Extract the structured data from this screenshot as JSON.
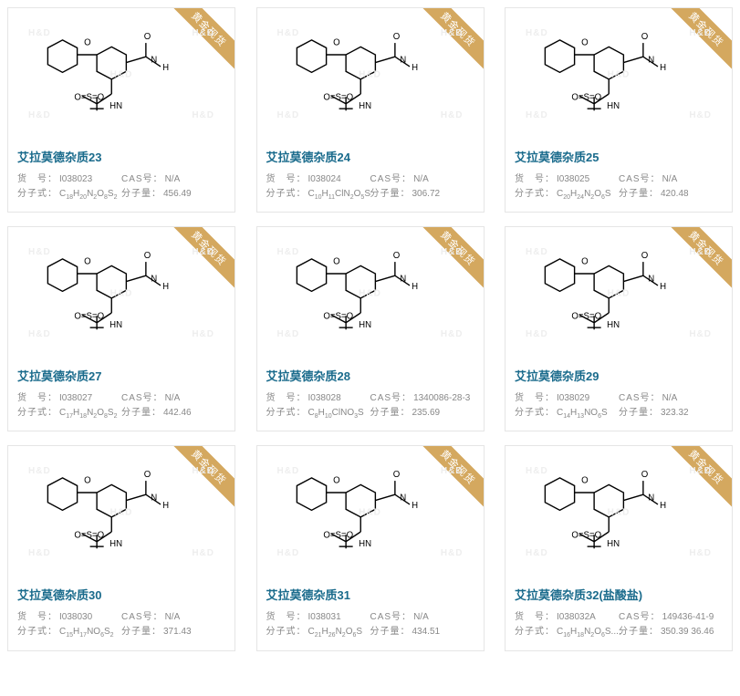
{
  "ribbon_text": "黄金现货",
  "watermark": "H&D",
  "labels": {
    "code": "货　号：",
    "cas": "CAS号：",
    "formula": "分子式：",
    "mw": "分子量："
  },
  "card_bg": "#ffffff",
  "border_color": "#e5e5e5",
  "ribbon_bg": "#d4a85f",
  "title_color": "#1a6b8c",
  "text_color": "#888888",
  "products": [
    {
      "title": "艾拉莫德杂质23",
      "code": "I038023",
      "cas": "N/A",
      "formula": "C<sub>18</sub>H<sub>20</sub>N<sub>2</sub>O<sub>8</sub>S<sub>2</sub>",
      "mw": "456.49"
    },
    {
      "title": "艾拉莫德杂质24",
      "code": "I038024",
      "cas": "N/A",
      "formula": "C<sub>10</sub>H<sub>11</sub>ClN<sub>2</sub>O<sub>5</sub>S",
      "mw": "306.72"
    },
    {
      "title": "艾拉莫德杂质25",
      "code": "I038025",
      "cas": "N/A",
      "formula": "C<sub>20</sub>H<sub>24</sub>N<sub>2</sub>O<sub>6</sub>S",
      "mw": "420.48"
    },
    {
      "title": "艾拉莫德杂质27",
      "code": "I038027",
      "cas": "N/A",
      "formula": "C<sub>17</sub>H<sub>18</sub>N<sub>2</sub>O<sub>8</sub>S<sub>2</sub>",
      "mw": "442.46"
    },
    {
      "title": "艾拉莫德杂质28",
      "code": "I038028",
      "cas": "1340086-28-3",
      "formula": "C<sub>8</sub>H<sub>10</sub>ClNO<sub>3</sub>S",
      "mw": "235.69"
    },
    {
      "title": "艾拉莫德杂质29",
      "code": "I038029",
      "cas": "N/A",
      "formula": "C<sub>14</sub>H<sub>13</sub>NO<sub>6</sub>S",
      "mw": "323.32"
    },
    {
      "title": "艾拉莫德杂质30",
      "code": "I038030",
      "cas": "N/A",
      "formula": "C<sub>15</sub>H<sub>17</sub>NO<sub>6</sub>S<sub>2</sub>",
      "mw": "371.43"
    },
    {
      "title": "艾拉莫德杂质31",
      "code": "I038031",
      "cas": "N/A",
      "formula": "C<sub>21</sub>H<sub>26</sub>N<sub>2</sub>O<sub>6</sub>S",
      "mw": "434.51"
    },
    {
      "title": "艾拉莫德杂质32(盐酸盐)",
      "code": "I038032A",
      "cas": "149436-41-9",
      "formula": "C<sub>16</sub>H<sub>18</sub>N<sub>2</sub>O<sub>6</sub>S....",
      "mw": "350.39 36.46"
    }
  ]
}
